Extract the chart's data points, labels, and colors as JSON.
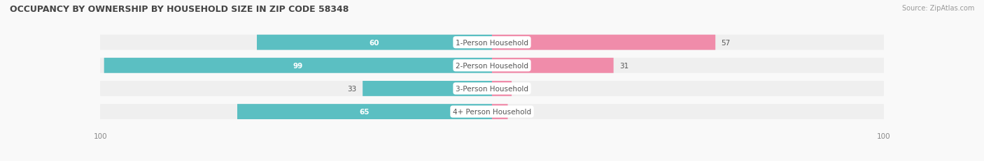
{
  "title": "OCCUPANCY BY OWNERSHIP BY HOUSEHOLD SIZE IN ZIP CODE 58348",
  "source": "Source: ZipAtlas.com",
  "categories": [
    "1-Person Household",
    "2-Person Household",
    "3-Person Household",
    "4+ Person Household"
  ],
  "owner_values": [
    60,
    99,
    33,
    65
  ],
  "renter_values": [
    57,
    31,
    5,
    4
  ],
  "max_value": 100,
  "owner_color": "#5bbfc2",
  "renter_color": "#f08caa",
  "bg_row_color": "#efefef",
  "title_fontsize": 9.0,
  "source_fontsize": 7.0,
  "bar_label_fontsize": 7.5,
  "category_fontsize": 7.5,
  "axis_label_fontsize": 7.5,
  "legend_fontsize": 7.5,
  "bar_height": 0.62,
  "fig_bg": "#f9f9f9"
}
